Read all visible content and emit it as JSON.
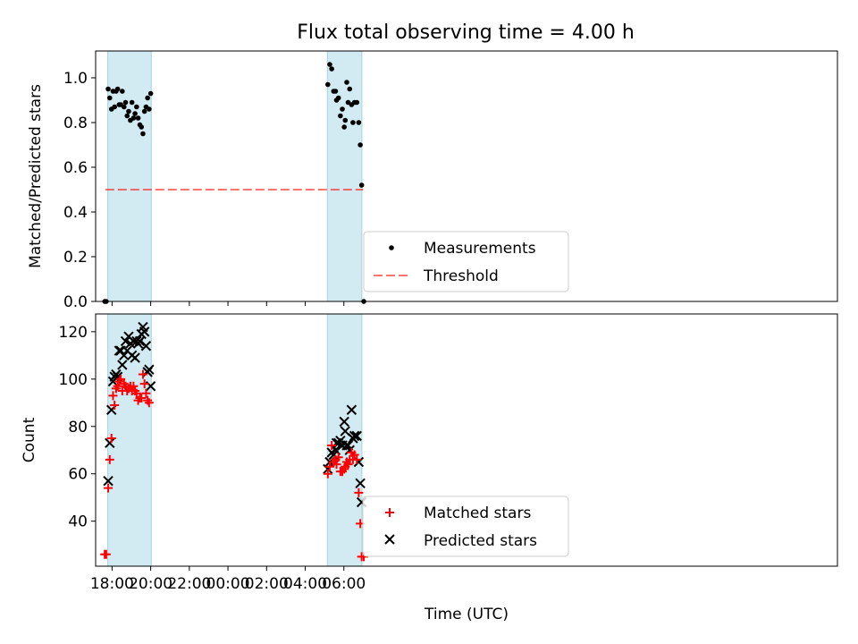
{
  "title": "Flux total observing time = 4.00 h",
  "colors": {
    "shade": "#add8e6",
    "measurement": "#000000",
    "threshold": "#ff0000",
    "matched": "#ff0000",
    "predicted": "#000000"
  },
  "chart_data": [
    {
      "type": "scatter",
      "ylabel": "Matched/Predicted stars",
      "ylim": [
        0,
        1.12
      ],
      "yticks": [
        "0.0",
        "0.2",
        "0.4",
        "0.6",
        "0.8",
        "1.0"
      ],
      "threshold": {
        "label": "Threshold",
        "value": 0.5,
        "x_start_hours": -6.35,
        "x_end_hours": 31.0
      },
      "legend": {
        "location": "lower center",
        "entries": [
          "Measurements",
          "Threshold"
        ]
      },
      "shaded_intervals_hours": [
        [
          17.78,
          20.03
        ],
        [
          29.15,
          30.93
        ]
      ],
      "series": [
        {
          "name": "Measurements",
          "points": [
            [
              17.62,
              0.0
            ],
            [
              17.7,
              0.0
            ],
            [
              17.8,
              0.95
            ],
            [
              17.88,
              0.91
            ],
            [
              17.97,
              0.86
            ],
            [
              18.05,
              0.94
            ],
            [
              18.13,
              0.87
            ],
            [
              18.21,
              0.94
            ],
            [
              18.29,
              0.95
            ],
            [
              18.37,
              0.88
            ],
            [
              18.45,
              0.88
            ],
            [
              18.53,
              0.94
            ],
            [
              18.62,
              0.87
            ],
            [
              18.7,
              0.89
            ],
            [
              18.78,
              0.83
            ],
            [
              18.86,
              0.85
            ],
            [
              18.95,
              0.81
            ],
            [
              19.03,
              0.89
            ],
            [
              19.11,
              0.82
            ],
            [
              19.19,
              0.84
            ],
            [
              19.27,
              0.87
            ],
            [
              19.35,
              0.82
            ],
            [
              19.44,
              0.79
            ],
            [
              19.52,
              0.78
            ],
            [
              19.6,
              0.75
            ],
            [
              19.68,
              0.85
            ],
            [
              19.76,
              0.87
            ],
            [
              19.84,
              0.91
            ],
            [
              19.92,
              0.86
            ],
            [
              20.0,
              0.93
            ],
            [
              29.17,
              0.97
            ],
            [
              29.27,
              1.06
            ],
            [
              29.37,
              1.04
            ],
            [
              29.47,
              0.94
            ],
            [
              29.57,
              0.94
            ],
            [
              29.62,
              0.9
            ],
            [
              29.72,
              0.91
            ],
            [
              29.82,
              0.83
            ],
            [
              29.92,
              0.86
            ],
            [
              30.02,
              0.78
            ],
            [
              30.07,
              0.81
            ],
            [
              30.15,
              0.98
            ],
            [
              30.22,
              0.89
            ],
            [
              30.3,
              0.95
            ],
            [
              30.4,
              0.88
            ],
            [
              30.47,
              0.8
            ],
            [
              30.55,
              0.89
            ],
            [
              30.67,
              0.89
            ],
            [
              30.77,
              0.8
            ],
            [
              30.85,
              0.7
            ],
            [
              30.92,
              0.52
            ],
            [
              31.03,
              0.0
            ]
          ]
        }
      ]
    },
    {
      "type": "scatter",
      "xlabel": "Time (UTC)",
      "ylabel": "Count",
      "ylim": [
        21.0,
        127.5
      ],
      "xlim_hours": [
        -6.85,
        31.55
      ],
      "x_origin": "00:00",
      "xticks": [
        {
          "hour": -6,
          "label": "18:00"
        },
        {
          "hour": -4,
          "label": "20:00"
        },
        {
          "hour": -2,
          "label": "22:00"
        },
        {
          "hour": 0,
          "label": "00:00"
        },
        {
          "hour": 2,
          "label": "02:00"
        },
        {
          "hour": 4,
          "label": "04:00"
        },
        {
          "hour": 6,
          "label": "06:00"
        }
      ],
      "yticks": [
        "40",
        "60",
        "80",
        "100",
        "120"
      ],
      "legend": {
        "location": "lower center",
        "entries": [
          "Matched stars",
          "Predicted stars"
        ]
      },
      "shaded_intervals_hours": [
        [
          17.78,
          20.03
        ],
        [
          29.15,
          30.93
        ]
      ],
      "series": [
        {
          "name": "Matched stars",
          "points": [
            [
              17.62,
              26
            ],
            [
              17.7,
              26
            ],
            [
              17.8,
              54
            ],
            [
              17.88,
              66
            ],
            [
              17.97,
              75
            ],
            [
              18.05,
              93
            ],
            [
              18.13,
              89
            ],
            [
              18.21,
              96
            ],
            [
              18.29,
              97
            ],
            [
              18.37,
              99
            ],
            [
              18.45,
              100
            ],
            [
              18.53,
              95
            ],
            [
              18.62,
              98
            ],
            [
              18.7,
              97
            ],
            [
              18.78,
              95
            ],
            [
              18.86,
              96
            ],
            [
              18.95,
              97
            ],
            [
              19.03,
              95
            ],
            [
              19.11,
              97
            ],
            [
              19.19,
              95
            ],
            [
              19.27,
              94
            ],
            [
              19.35,
              91
            ],
            [
              19.44,
              92
            ],
            [
              19.52,
              92
            ],
            [
              19.6,
              102
            ],
            [
              19.68,
              98
            ],
            [
              19.76,
              94
            ],
            [
              19.84,
              91
            ],
            [
              19.92,
              90
            ],
            [
              29.17,
              60
            ],
            [
              29.27,
              63
            ],
            [
              29.37,
              72
            ],
            [
              29.47,
              65
            ],
            [
              29.57,
              66
            ],
            [
              29.62,
              64
            ],
            [
              29.72,
              67
            ],
            [
              29.82,
              61
            ],
            [
              29.92,
              61
            ],
            [
              30.02,
              62
            ],
            [
              30.07,
              63
            ],
            [
              30.15,
              65
            ],
            [
              30.22,
              64
            ],
            [
              30.3,
              66
            ],
            [
              30.4,
              69
            ],
            [
              30.47,
              66
            ],
            [
              30.55,
              68
            ],
            [
              30.67,
              66
            ],
            [
              30.77,
              52
            ],
            [
              30.85,
              39
            ],
            [
              30.92,
              25
            ],
            [
              31.03,
              25
            ]
          ]
        },
        {
          "name": "Predicted stars",
          "points": [
            [
              17.8,
              57
            ],
            [
              17.88,
              73
            ],
            [
              17.97,
              87
            ],
            [
              18.05,
              99
            ],
            [
              18.13,
              101
            ],
            [
              18.21,
              102
            ],
            [
              18.29,
              101
            ],
            [
              18.37,
              112
            ],
            [
              18.45,
              112
            ],
            [
              18.53,
              106
            ],
            [
              18.62,
              110
            ],
            [
              18.7,
              116
            ],
            [
              18.78,
              112
            ],
            [
              18.86,
              118
            ],
            [
              18.95,
              115
            ],
            [
              19.03,
              110
            ],
            [
              19.11,
              116
            ],
            [
              19.19,
              109
            ],
            [
              19.27,
              116
            ],
            [
              19.35,
              115
            ],
            [
              19.44,
              116
            ],
            [
              19.52,
              119
            ],
            [
              19.6,
              122
            ],
            [
              19.68,
              120
            ],
            [
              19.76,
              114
            ],
            [
              19.84,
              103
            ],
            [
              19.92,
              104
            ],
            [
              20.0,
              97
            ],
            [
              29.17,
              62
            ],
            [
              29.27,
              65
            ],
            [
              29.37,
              69
            ],
            [
              29.47,
              68
            ],
            [
              29.57,
              70
            ],
            [
              29.62,
              73
            ],
            [
              29.72,
              73
            ],
            [
              29.82,
              74
            ],
            [
              29.92,
              72
            ],
            [
              30.02,
              82
            ],
            [
              30.07,
              78
            ],
            [
              30.15,
              72
            ],
            [
              30.22,
              72
            ],
            [
              30.3,
              70
            ],
            [
              30.4,
              87
            ],
            [
              30.47,
              75
            ],
            [
              30.55,
              76
            ],
            [
              30.67,
              76
            ],
            [
              30.77,
              65
            ],
            [
              30.85,
              56
            ],
            [
              30.92,
              48
            ]
          ]
        }
      ]
    }
  ]
}
